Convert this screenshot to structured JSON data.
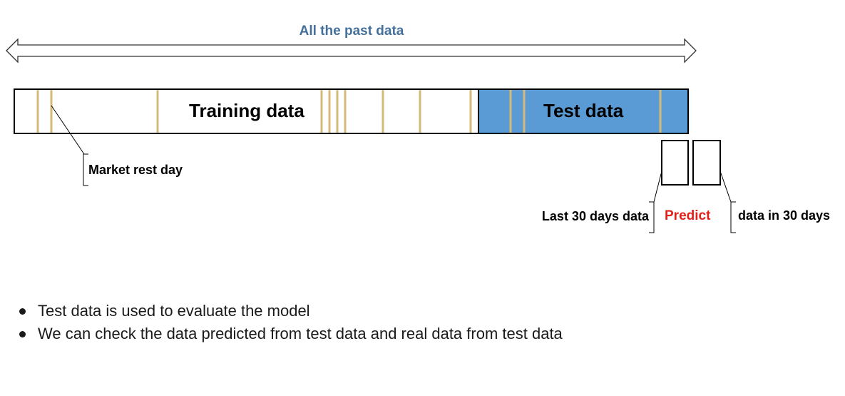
{
  "title": "All the past data",
  "training_label": "Training data",
  "test_label": "Test data",
  "rest_day_label": "Market rest day",
  "last_30_label": "Last 30 days data",
  "predict_label": "Predict",
  "future_30_label": "data in 30 days",
  "notes": [
    "Test data is used to evaluate the model",
    "We can check the data predicted from test data and real data from test data"
  ],
  "colors": {
    "title": "#44709b",
    "test_fill": "#5b9bd5",
    "rest_day_line": "#d4b978",
    "predict": "#e0201b"
  }
}
